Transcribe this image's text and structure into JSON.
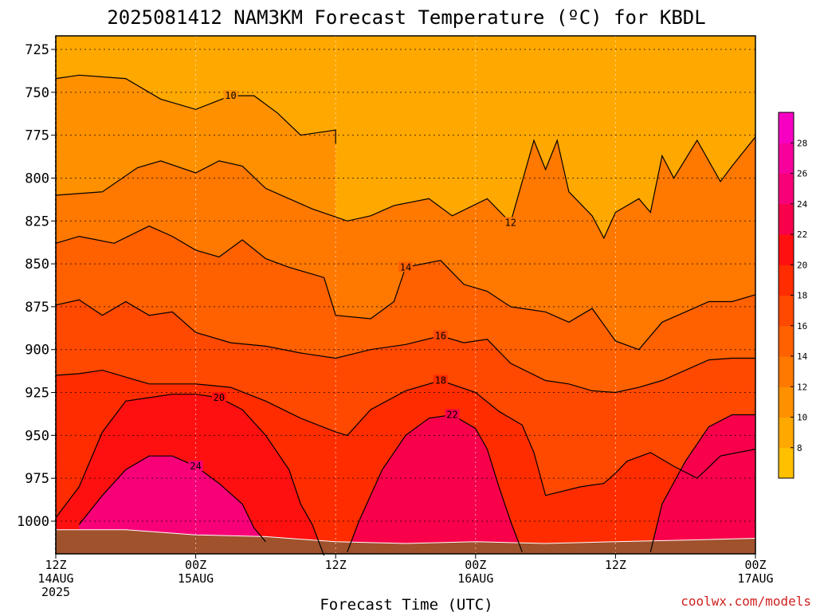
{
  "chart_data": {
    "type": "heatmap",
    "title": "2025081412 NAM3KM Forecast Temperature (ºC) for KBDL",
    "xlabel": "Forecast Time (UTC)",
    "ylabel": "",
    "credit": "coolwx.com/models",
    "x_ticks": [
      {
        "hour": 0,
        "line1": "12Z",
        "line2": "14AUG",
        "line3": "2025"
      },
      {
        "hour": 12,
        "line1": "00Z",
        "line2": "15AUG",
        "line3": ""
      },
      {
        "hour": 24,
        "line1": "12Z",
        "line2": "",
        "line3": ""
      },
      {
        "hour": 36,
        "line1": "00Z",
        "line2": "16AUG",
        "line3": ""
      },
      {
        "hour": 48,
        "line1": "12Z",
        "line2": "",
        "line3": ""
      },
      {
        "hour": 60,
        "line1": "00Z",
        "line2": "17AUG",
        "line3": ""
      }
    ],
    "y_ticks": [
      725,
      750,
      775,
      800,
      825,
      850,
      875,
      900,
      925,
      950,
      975,
      1000
    ],
    "ylim": [
      1020,
      715
    ],
    "xlim": [
      0,
      60
    ],
    "colorbar": {
      "ticks": [
        8,
        10,
        12,
        14,
        16,
        18,
        20,
        22,
        24,
        26,
        28
      ],
      "range": [
        6,
        30
      ],
      "colors": [
        "#ffc000",
        "#ffa800",
        "#ff9000",
        "#ff7800",
        "#ff6000",
        "#ff4800",
        "#ff2c00",
        "#ff1010",
        "#f8004a",
        "#f80078",
        "#f8009c",
        "#f800c4"
      ]
    },
    "contours": [
      {
        "level": 10,
        "label": "10",
        "points": [
          [
            0,
            742
          ],
          [
            2,
            740
          ],
          [
            6,
            742
          ],
          [
            9,
            754
          ],
          [
            12,
            760
          ],
          [
            15,
            752
          ],
          [
            17,
            752
          ],
          [
            19,
            762
          ],
          [
            21,
            775
          ],
          [
            24,
            772
          ],
          [
            24,
            780
          ]
        ]
      },
      {
        "level": 12,
        "label": "12",
        "points": [
          [
            0,
            810
          ],
          [
            4,
            808
          ],
          [
            7,
            794
          ],
          [
            9,
            790
          ],
          [
            12,
            797
          ],
          [
            14,
            790
          ],
          [
            16,
            793
          ],
          [
            18,
            806
          ],
          [
            20,
            812
          ],
          [
            22,
            818
          ],
          [
            25,
            825
          ],
          [
            27,
            822
          ],
          [
            29,
            816
          ],
          [
            32,
            812
          ],
          [
            34,
            822
          ],
          [
            37,
            812
          ],
          [
            39,
            826
          ],
          [
            41,
            778
          ],
          [
            42,
            795
          ],
          [
            43,
            778
          ],
          [
            44,
            808
          ],
          [
            46,
            822
          ],
          [
            47,
            835
          ],
          [
            48,
            820
          ],
          [
            50,
            812
          ],
          [
            51,
            820
          ],
          [
            52,
            787
          ],
          [
            53,
            800
          ],
          [
            55,
            778
          ],
          [
            57,
            802
          ],
          [
            58,
            793
          ],
          [
            60,
            776
          ]
        ]
      },
      {
        "level": 14,
        "label": "14",
        "points": [
          [
            0,
            838
          ],
          [
            2,
            834
          ],
          [
            5,
            838
          ],
          [
            8,
            828
          ],
          [
            10,
            834
          ],
          [
            12,
            842
          ],
          [
            14,
            846
          ],
          [
            16,
            836
          ],
          [
            18,
            847
          ],
          [
            20,
            852
          ],
          [
            23,
            858
          ],
          [
            24,
            880
          ],
          [
            27,
            882
          ],
          [
            29,
            872
          ],
          [
            30,
            852
          ],
          [
            33,
            848
          ],
          [
            35,
            862
          ],
          [
            37,
            866
          ],
          [
            39,
            875
          ],
          [
            42,
            878
          ],
          [
            44,
            884
          ],
          [
            46,
            876
          ],
          [
            48,
            895
          ],
          [
            50,
            900
          ],
          [
            52,
            884
          ],
          [
            54,
            878
          ],
          [
            56,
            872
          ],
          [
            58,
            872
          ],
          [
            60,
            868
          ]
        ]
      },
      {
        "level": 16,
        "label": "16",
        "points": [
          [
            0,
            874
          ],
          [
            2,
            871
          ],
          [
            4,
            880
          ],
          [
            6,
            872
          ],
          [
            8,
            880
          ],
          [
            10,
            878
          ],
          [
            12,
            890
          ],
          [
            15,
            896
          ],
          [
            18,
            898
          ],
          [
            21,
            902
          ],
          [
            24,
            905
          ],
          [
            27,
            900
          ],
          [
            30,
            897
          ],
          [
            33,
            892
          ],
          [
            35,
            896
          ],
          [
            37,
            894
          ],
          [
            39,
            908
          ],
          [
            42,
            918
          ],
          [
            44,
            920
          ],
          [
            46,
            924
          ],
          [
            48,
            925
          ],
          [
            50,
            922
          ],
          [
            52,
            918
          ],
          [
            54,
            912
          ],
          [
            56,
            906
          ],
          [
            58,
            905
          ],
          [
            60,
            905
          ]
        ]
      },
      {
        "level": 18,
        "label": "18",
        "points": [
          [
            0,
            915
          ],
          [
            2,
            914
          ],
          [
            4,
            912
          ],
          [
            6,
            916
          ],
          [
            8,
            920
          ],
          [
            10,
            920
          ],
          [
            12,
            920
          ],
          [
            15,
            922
          ],
          [
            18,
            930
          ],
          [
            21,
            940
          ],
          [
            24,
            948
          ],
          [
            25,
            950
          ],
          [
            27,
            935
          ],
          [
            30,
            924
          ],
          [
            33,
            918
          ],
          [
            36,
            925
          ],
          [
            38,
            936
          ],
          [
            40,
            944
          ],
          [
            41,
            960
          ],
          [
            42,
            985
          ],
          [
            45,
            980
          ],
          [
            47,
            978
          ],
          [
            48,
            972
          ],
          [
            49,
            965
          ],
          [
            51,
            960
          ],
          [
            53,
            968
          ],
          [
            55,
            975
          ],
          [
            57,
            962
          ],
          [
            60,
            958
          ]
        ]
      },
      {
        "level": 20,
        "label": "20",
        "points": [
          [
            0,
            998
          ],
          [
            2,
            980
          ],
          [
            4,
            948
          ],
          [
            6,
            930
          ],
          [
            8,
            928
          ],
          [
            10,
            926
          ],
          [
            12,
            926
          ],
          [
            14,
            928
          ],
          [
            16,
            935
          ],
          [
            18,
            950
          ],
          [
            20,
            970
          ],
          [
            21,
            990
          ],
          [
            22,
            1002
          ],
          [
            23,
            1020
          ]
        ]
      },
      {
        "level": 22,
        "label": "22",
        "points": [
          [
            25,
            1018
          ],
          [
            26,
            1000
          ],
          [
            28,
            970
          ],
          [
            30,
            950
          ],
          [
            32,
            940
          ],
          [
            34,
            938
          ],
          [
            36,
            946
          ],
          [
            37,
            958
          ],
          [
            38,
            980
          ],
          [
            39,
            1000
          ],
          [
            40,
            1018
          ]
        ]
      },
      {
        "level": 22,
        "label": "",
        "points": [
          [
            51,
            1018
          ],
          [
            52,
            990
          ],
          [
            54,
            965
          ],
          [
            56,
            945
          ],
          [
            58,
            938
          ],
          [
            60,
            938
          ]
        ]
      },
      {
        "level": 24,
        "label": "24",
        "points": [
          [
            2,
            1002
          ],
          [
            4,
            985
          ],
          [
            6,
            970
          ],
          [
            8,
            962
          ],
          [
            10,
            962
          ],
          [
            12,
            968
          ],
          [
            14,
            978
          ],
          [
            16,
            990
          ],
          [
            17,
            1004
          ],
          [
            18,
            1012
          ]
        ]
      }
    ],
    "terrain_top": [
      [
        0,
        1005
      ],
      [
        6,
        1005
      ],
      [
        12,
        1008
      ],
      [
        18,
        1009
      ],
      [
        24,
        1012
      ],
      [
        30,
        1013
      ],
      [
        36,
        1012
      ],
      [
        42,
        1013
      ],
      [
        48,
        1012
      ],
      [
        54,
        1011
      ],
      [
        60,
        1010
      ]
    ]
  }
}
